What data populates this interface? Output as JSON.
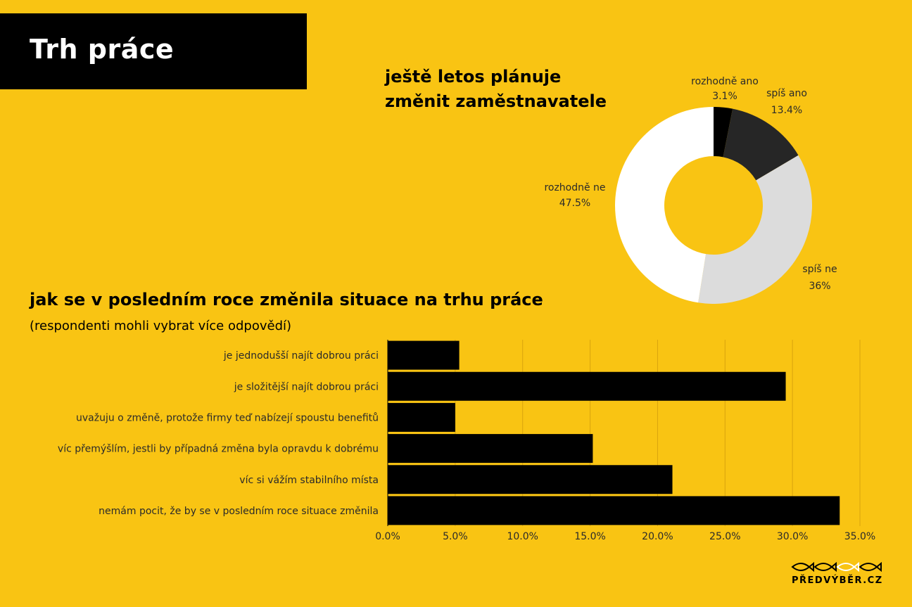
{
  "header": {
    "title": "Trh práce"
  },
  "pie": {
    "title_line1": "ještě letos plánuje",
    "title_line2": "změnit zaměstnavatele"
  },
  "bars": {
    "title": "jak se v posledním roce změnila situace na trhu práce",
    "subtitle": "(respondenti mohli vybrat více odpovědí)"
  },
  "logo": {
    "text": "PŘEDVÝBĚR.CZ"
  },
  "colors": {
    "background": "#F9C413",
    "bar": "#000000",
    "pie_rozhodne_ano": "#000000",
    "pie_spis_ano": "#262626",
    "pie_spis_ne": "#DCDCDC",
    "pie_rozhodne_ne": "#FFFFFF",
    "gridline": "#D9A40E"
  },
  "chart_data": [
    {
      "type": "pie",
      "title": "ještě letos plánuje změnit zaměstnavatele",
      "donut": true,
      "slices": [
        {
          "label": "rozhodně ano",
          "value_label": "3.1%",
          "value": 3.1
        },
        {
          "label": "spíš ano",
          "value_label": "13.4%",
          "value": 13.4
        },
        {
          "label": "spíš ne",
          "value_label": "36%",
          "value": 36
        },
        {
          "label": "rozhodně ne",
          "value_label": "47.5%",
          "value": 47.5
        }
      ]
    },
    {
      "type": "bar",
      "orientation": "horizontal",
      "title": "jak se v posledním roce změnila situace na trhu práce",
      "subtitle": "(respondenti mohli vybrat více odpovědí)",
      "categories": [
        "je jednodušší najít dobrou práci",
        "je složitější najít dobrou práci",
        "uvažuju o změně, protože firmy teď nabízejí spoustu benefitů",
        "víc přemýšlím, jestli by případná změna byla opravdu k dobrému",
        "víc si vážím stabilního místa",
        "nemám pocit, že by se v posledním roce situace změnila"
      ],
      "values": [
        5.3,
        29.5,
        5.0,
        15.2,
        21.1,
        33.5
      ],
      "xlim": [
        0,
        35
      ],
      "xticks": [
        "0.0%",
        "5.0%",
        "10.0%",
        "15.0%",
        "20.0%",
        "25.0%",
        "30.0%",
        "35.0%"
      ],
      "grid": true
    }
  ]
}
